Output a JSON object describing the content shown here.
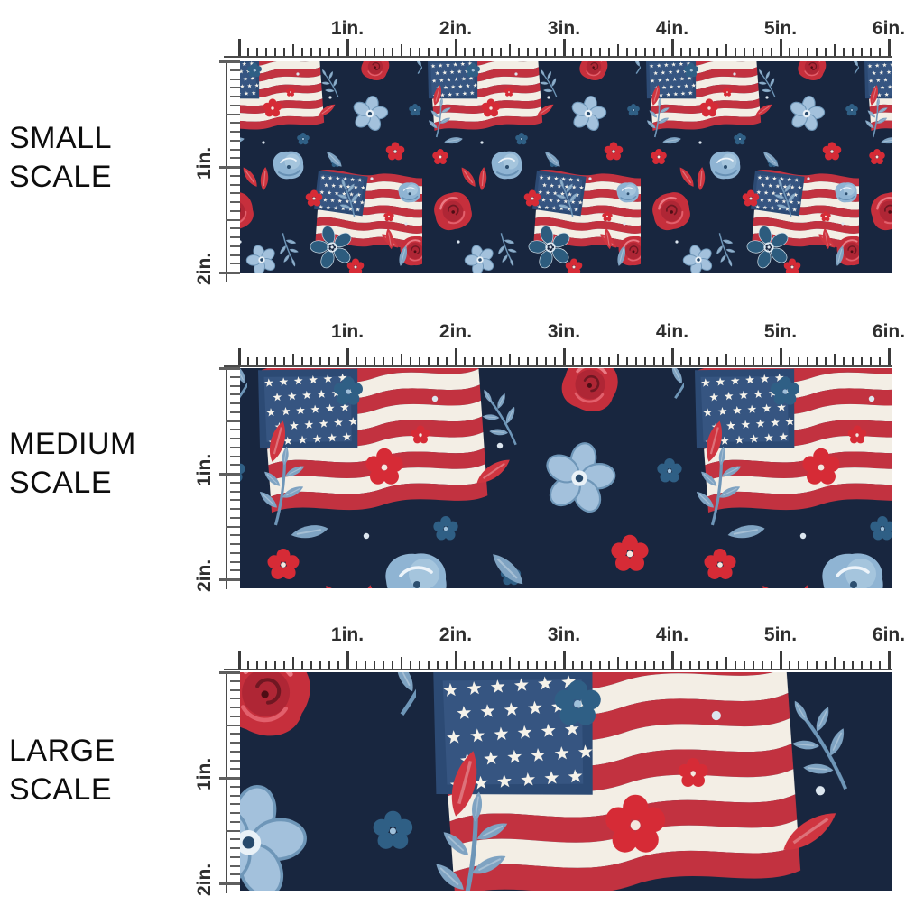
{
  "scale_sections": [
    {
      "name": "small-scale",
      "line1": "SMALL",
      "line2": "SCALE",
      "pattern_scale": 1
    },
    {
      "name": "medium-scale",
      "line1": "MEDIUM",
      "line2": "SCALE",
      "pattern_scale": 2
    },
    {
      "name": "large-scale",
      "line1": "LARGE",
      "line2": "SCALE",
      "pattern_scale": 3.2
    }
  ],
  "rulers": {
    "horizontal_inch_labels": [
      "1in.",
      "2in.",
      "3in.",
      "4in.",
      "5in.",
      "6in."
    ],
    "vertical_inch_labels": [
      "1in.",
      "2in."
    ],
    "inches_horizontal": 6,
    "inches_vertical": 2
  },
  "fabric": {
    "colors": {
      "navy": "#18263f",
      "flag_red": "#c23240",
      "flag_white": "#f3eee5",
      "canton_blue": "#2c4a74",
      "canton_light": "#3d5e8c",
      "star_white": "#f5f2ea",
      "rose_red": "#c62f3c",
      "rose_dark": "#aa2434",
      "rose_light": "#ea7b85",
      "blue_light": "#a3c1dc",
      "blue_mid": "#6e96b8",
      "blue_deep": "#2d5c7e",
      "blue_blob": "#8fb4d3",
      "red_small": "#d62b36",
      "red_leaf": "#cf3540",
      "leaf_blue": "#7fa3c2",
      "navy_flower": "#2f5f85"
    }
  }
}
